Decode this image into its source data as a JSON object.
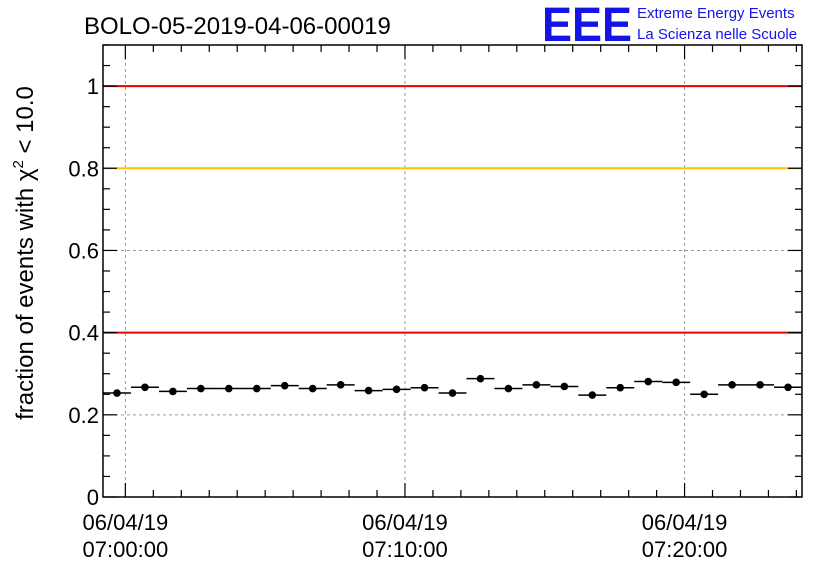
{
  "title": "BOLO-05-2019-04-06-00019",
  "logo": {
    "mark": "EEE",
    "line1": "Extreme Energy Events",
    "line2": "La Scienza nelle Scuole"
  },
  "chart_data": {
    "type": "scatter",
    "title": "BOLO-05-2019-04-06-00019",
    "ylabel": "fraction of events with χ² < 10.0",
    "ylabel_parts": {
      "main": "fraction of events with χ",
      "sup": "2",
      "tail": " < 10.0"
    },
    "xlabel": "",
    "x_axis": {
      "type": "time",
      "range": [
        "2019-04-06 06:59:12",
        "2019-04-06 07:24:12"
      ],
      "ticks": [
        {
          "value": "2019-04-06 07:00:00",
          "date_label": "06/04/19",
          "time_label": "07:00:00"
        },
        {
          "value": "2019-04-06 07:10:00",
          "date_label": "06/04/19",
          "time_label": "07:10:00"
        },
        {
          "value": "2019-04-06 07:20:00",
          "date_label": "06/04/19",
          "time_label": "07:20:00"
        }
      ]
    },
    "ylim": [
      0,
      1.1
    ],
    "yticks": [
      {
        "value": 0,
        "label": "0"
      },
      {
        "value": 0.2,
        "label": "0.2"
      },
      {
        "value": 0.4,
        "label": "0.4"
      },
      {
        "value": 0.6,
        "label": "0.6"
      },
      {
        "value": 0.8,
        "label": "0.8"
      },
      {
        "value": 1.0,
        "label": "1"
      }
    ],
    "grid": true,
    "reference_lines": [
      {
        "y": 1.0,
        "color": "#e60000"
      },
      {
        "y": 0.8,
        "color": "#ffc000"
      },
      {
        "y": 0.4,
        "color": "#e60000"
      }
    ],
    "marker_color": "#000000",
    "points": [
      {
        "x": "2019-04-06 06:59:42",
        "y": 0.253
      },
      {
        "x": "2019-04-06 07:00:42",
        "y": 0.267
      },
      {
        "x": "2019-04-06 07:01:42",
        "y": 0.257
      },
      {
        "x": "2019-04-06 07:02:42",
        "y": 0.264
      },
      {
        "x": "2019-04-06 07:03:42",
        "y": 0.264
      },
      {
        "x": "2019-04-06 07:04:42",
        "y": 0.264
      },
      {
        "x": "2019-04-06 07:05:42",
        "y": 0.271
      },
      {
        "x": "2019-04-06 07:06:42",
        "y": 0.264
      },
      {
        "x": "2019-04-06 07:07:42",
        "y": 0.273
      },
      {
        "x": "2019-04-06 07:08:42",
        "y": 0.259
      },
      {
        "x": "2019-04-06 07:09:42",
        "y": 0.262
      },
      {
        "x": "2019-04-06 07:10:42",
        "y": 0.266
      },
      {
        "x": "2019-04-06 07:11:42",
        "y": 0.253
      },
      {
        "x": "2019-04-06 07:12:42",
        "y": 0.288
      },
      {
        "x": "2019-04-06 07:13:42",
        "y": 0.264
      },
      {
        "x": "2019-04-06 07:14:42",
        "y": 0.273
      },
      {
        "x": "2019-04-06 07:15:42",
        "y": 0.269
      },
      {
        "x": "2019-04-06 07:16:42",
        "y": 0.248
      },
      {
        "x": "2019-04-06 07:17:42",
        "y": 0.266
      },
      {
        "x": "2019-04-06 07:18:42",
        "y": 0.281
      },
      {
        "x": "2019-04-06 07:19:42",
        "y": 0.279
      },
      {
        "x": "2019-04-06 07:20:42",
        "y": 0.25
      },
      {
        "x": "2019-04-06 07:21:42",
        "y": 0.273
      },
      {
        "x": "2019-04-06 07:22:42",
        "y": 0.273
      },
      {
        "x": "2019-04-06 07:23:42",
        "y": 0.267
      }
    ],
    "point_bin_width_seconds": 60
  }
}
